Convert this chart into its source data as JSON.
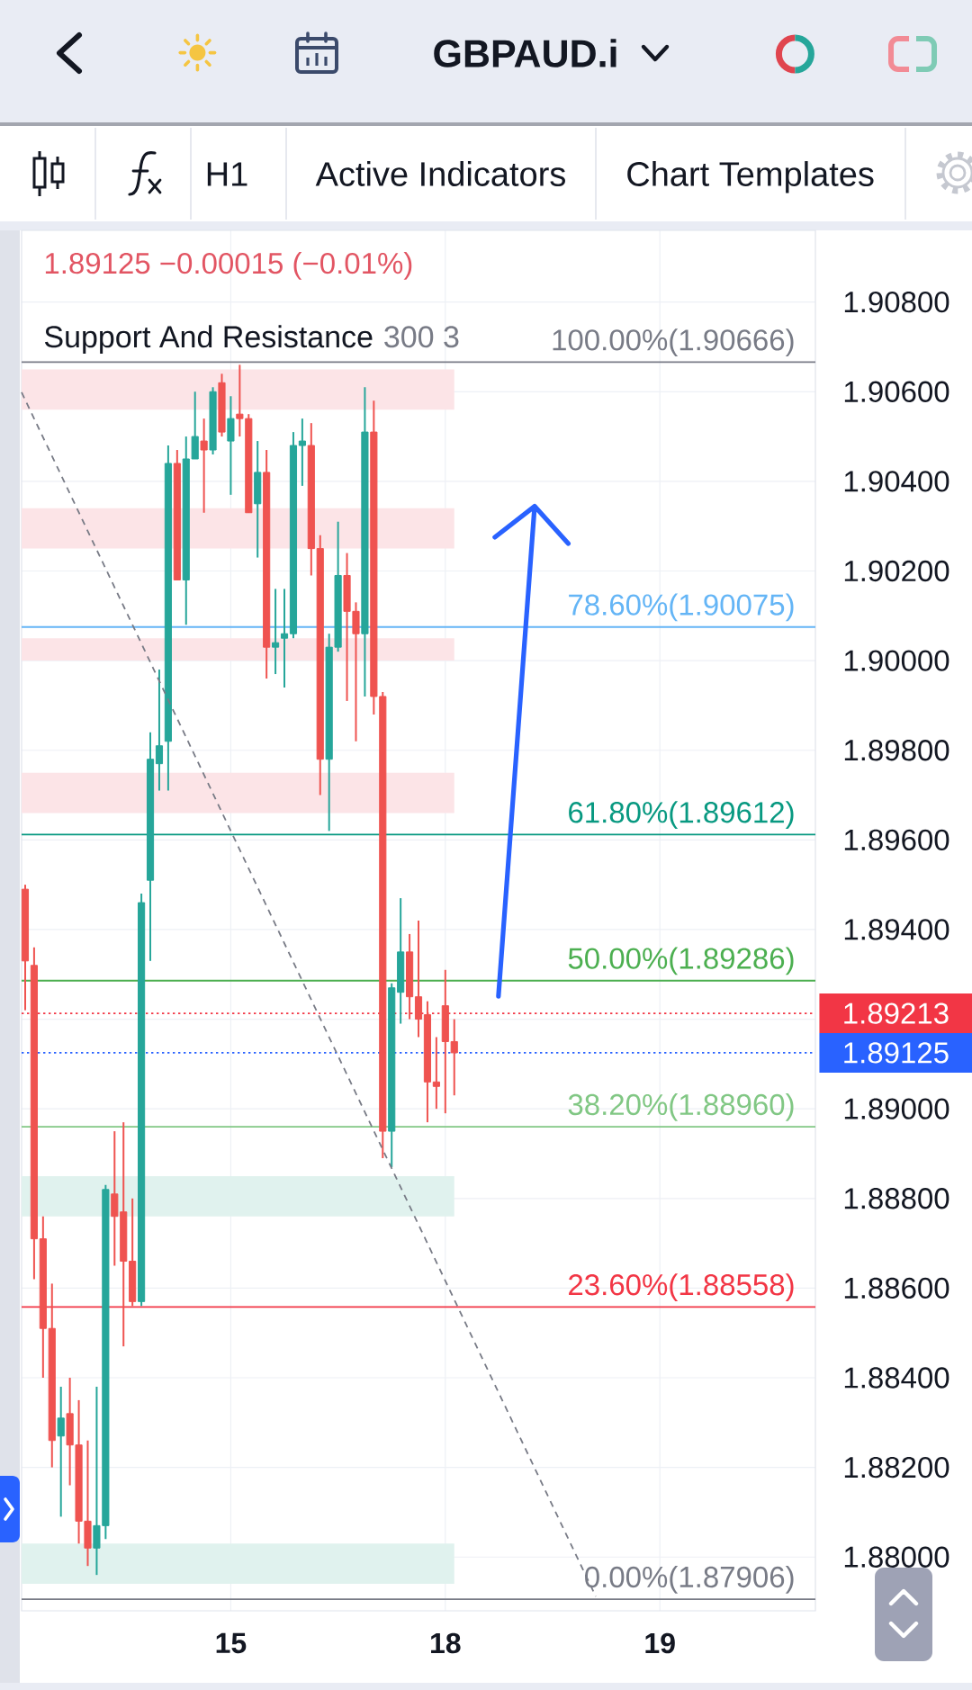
{
  "chart_data": {
    "type": "candlestick",
    "title": "GBPAUD.i",
    "annotations": [
      "1.89125 −0.00015 (−0.01%)",
      "Support And Resistance",
      "300 3",
      "H1",
      "Active Indicators",
      "Chart Templates"
    ],
    "categories": [
      null,
      null,
      null,
      null,
      null,
      null,
      null,
      null,
      null,
      null,
      null,
      null,
      null,
      null,
      null,
      null,
      null,
      null,
      null,
      null,
      null,
      null,
      null,
      "15",
      null,
      null,
      null,
      null,
      null,
      null,
      null,
      null,
      null,
      null,
      null,
      null,
      null,
      null,
      null,
      null,
      null,
      null,
      null,
      null,
      null,
      null,
      null,
      "18",
      null,
      null,
      null,
      null,
      null,
      null,
      null,
      null,
      null,
      null,
      null,
      null,
      null,
      null,
      null,
      null,
      null,
      null,
      null,
      null,
      null,
      null,
      null,
      "19",
      null,
      null,
      null,
      null,
      null,
      null,
      null,
      null,
      null,
      null,
      null,
      null,
      null,
      null,
      null,
      null,
      null
    ],
    "ohlc": [
      [
        1.8949,
        1.895,
        1.8922,
        1.8933
      ],
      [
        1.8932,
        1.8936,
        1.8862,
        1.8871
      ],
      [
        1.8871,
        1.8876,
        1.884,
        1.8851
      ],
      [
        1.8851,
        1.8861,
        1.882,
        1.8826
      ],
      [
        1.8827,
        1.8838,
        1.8809,
        1.8831
      ],
      [
        1.8832,
        1.884,
        1.8816,
        1.8825
      ],
      [
        1.8825,
        1.8835,
        1.8803,
        1.8808
      ],
      [
        1.8808,
        1.8826,
        1.8798,
        1.8802
      ],
      [
        1.8802,
        1.8838,
        1.8796,
        1.8807
      ],
      [
        1.8807,
        1.8883,
        1.8804,
        1.8882
      ],
      [
        1.8881,
        1.8895,
        1.8865,
        1.8876
      ],
      [
        1.8877,
        1.8897,
        1.8847,
        1.8866
      ],
      [
        1.8866,
        1.888,
        1.8856,
        1.8857
      ],
      [
        1.8857,
        1.8948,
        1.8856,
        1.8946
      ],
      [
        1.8951,
        1.8984,
        1.8933,
        1.8978
      ],
      [
        1.8977,
        1.8998,
        1.8971,
        1.8981
      ],
      [
        1.8982,
        1.9048,
        1.8971,
        1.9044
      ],
      [
        1.9044,
        1.9047,
        1.9018,
        1.9018
      ],
      [
        1.9018,
        1.905,
        1.9008,
        1.9045
      ],
      [
        1.9045,
        1.906,
        1.9045,
        1.905
      ],
      [
        1.9049,
        1.9054,
        1.9033,
        1.9047
      ],
      [
        1.9047,
        1.9061,
        1.9046,
        1.906
      ],
      [
        1.9062,
        1.9064,
        1.905,
        1.9051
      ],
      [
        1.9049,
        1.9059,
        1.9037,
        1.9054
      ],
      [
        1.9055,
        1.9066,
        1.905,
        1.9054
      ],
      [
        1.9054,
        1.9055,
        1.9033,
        1.9033
      ],
      [
        1.9035,
        1.9049,
        1.9023,
        1.9042
      ],
      [
        1.9042,
        1.9047,
        1.8996,
        1.9003
      ],
      [
        1.9003,
        1.9016,
        1.8997,
        1.9004
      ],
      [
        1.9005,
        1.9016,
        1.8994,
        1.9006
      ],
      [
        1.9006,
        1.9051,
        1.9005,
        1.9048
      ],
      [
        1.9048,
        1.9054,
        1.9039,
        1.9049
      ],
      [
        1.9048,
        1.9053,
        1.9019,
        1.9025
      ],
      [
        1.9025,
        1.9028,
        1.897,
        1.8978
      ],
      [
        1.8978,
        1.9006,
        1.8962,
        1.9003
      ],
      [
        1.9003,
        1.9031,
        1.9002,
        1.9019
      ],
      [
        1.9019,
        1.9024,
        1.8991,
        1.9011
      ],
      [
        1.9011,
        1.9013,
        1.8982,
        1.9006
      ],
      [
        1.9006,
        1.9061,
        1.8992,
        1.9051
      ],
      [
        1.9051,
        1.9058,
        1.8988,
        1.8992
      ],
      [
        1.8992,
        1.8993,
        1.8889,
        1.8895
      ],
      [
        1.8895,
        1.8928,
        1.8887,
        1.8927
      ],
      [
        1.8926,
        1.8947,
        1.8919,
        1.8935
      ],
      [
        1.8935,
        1.8939,
        1.892,
        1.8925
      ],
      [
        1.8925,
        1.8942,
        1.8916,
        1.892
      ],
      [
        1.8921,
        1.8924,
        1.8897,
        1.8906
      ],
      [
        1.8906,
        1.8916,
        1.89,
        1.8905
      ],
      [
        1.8923,
        1.8931,
        1.8899,
        1.8915
      ],
      [
        1.8915,
        1.892,
        1.8903,
        1.89125
      ],
      null,
      null,
      null,
      null,
      null,
      null,
      null,
      null,
      null,
      null,
      null,
      null,
      null,
      null,
      null,
      null,
      null,
      null,
      null,
      null,
      null,
      null,
      null,
      null,
      null,
      null,
      null,
      null,
      null,
      null,
      null,
      null,
      null,
      null,
      null,
      null,
      null,
      null,
      null,
      null
    ],
    "colors": [
      "#ef5350",
      "#ef5350",
      "#ef5350",
      "#ef5350",
      "#26a69a",
      "#ef5350",
      "#ef5350",
      "#ef5350",
      "#26a69a",
      "#26a69a",
      "#ef5350",
      "#ef5350",
      "#ef5350",
      "#26a69a",
      "#26a69a",
      "#26a69a",
      "#26a69a",
      "#ef5350",
      "#26a69a",
      "#26a69a",
      "#ef5350",
      "#26a69a",
      "#ef5350",
      "#26a69a",
      "#ef5350",
      "#ef5350",
      "#26a69a",
      "#ef5350",
      "#26a69a",
      "#26a69a",
      "#26a69a",
      "#26a69a",
      "#ef5350",
      "#ef5350",
      "#26a69a",
      "#26a69a",
      "#ef5350",
      "#ef5350",
      "#26a69a",
      "#ef5350",
      "#ef5350",
      "#26a69a",
      "#26a69a",
      "#ef5350",
      "#ef5350",
      "#ef5350",
      "#ef5350",
      "#ef5350",
      "#ef5350",
      null,
      null,
      null,
      null,
      null,
      null,
      null,
      null,
      null,
      null,
      null,
      null,
      null,
      null,
      null,
      null,
      null,
      null,
      null,
      null,
      null,
      null,
      null,
      null,
      null,
      null,
      null,
      null,
      null,
      null,
      null,
      null,
      null,
      null,
      null,
      null,
      null,
      null,
      null,
      null
    ],
    "ref_lines": [
      {
        "axis": "y",
        "value": 1.90666,
        "label": "100.00%(1.90666)",
        "color": "#787b86"
      },
      {
        "axis": "y",
        "value": 1.90075,
        "label": "78.60%(1.90075)",
        "color": "#64b5f6"
      },
      {
        "axis": "y",
        "value": 1.89612,
        "label": "61.80%(1.89612)",
        "color": "#089981"
      },
      {
        "axis": "y",
        "value": 1.89286,
        "label": "50.00%(1.89286)",
        "color": "#4caf50"
      },
      {
        "axis": "y",
        "value": 1.8896,
        "label": "38.20%(1.88960)",
        "color": "#81c784"
      },
      {
        "axis": "y",
        "value": 1.88558,
        "label": "23.60%(1.88558)",
        "color": "#f23645"
      },
      {
        "axis": "y",
        "value": 1.87906,
        "label": "0.00%(1.87906)",
        "color": "#787b86"
      },
      {
        "axis": "y",
        "value": 1.89213,
        "label": "1.89213",
        "color": "#f23645",
        "line_style": "dotted"
      },
      {
        "axis": "y",
        "value": 1.89125,
        "label": "1.89125",
        "color": "#2962ff",
        "line_style": "dotted"
      }
    ],
    "bands": [
      {
        "axis": "y",
        "from": 1.9056,
        "to": 1.9065,
        "color": "#fce4e7"
      },
      {
        "axis": "y",
        "from": 1.9025,
        "to": 1.9034,
        "color": "#fce4e7"
      },
      {
        "axis": "y",
        "from": 1.9,
        "to": 1.9005,
        "color": "#fce4e7"
      },
      {
        "axis": "y",
        "from": 1.8966,
        "to": 1.8975,
        "color": "#fce4e7"
      },
      {
        "axis": "y",
        "from": 1.8876,
        "to": 1.8885,
        "color": "#e0f2ee"
      },
      {
        "axis": "y",
        "from": 1.8794,
        "to": 1.8803,
        "color": "#e0f2ee"
      }
    ],
    "ylim": [
      1.8788,
      1.9096
    ],
    "yticks": [
      {
        "value": 1.88,
        "label": "1.88000"
      },
      {
        "value": 1.882,
        "label": "1.88200"
      },
      {
        "value": 1.884,
        "label": "1.88400"
      },
      {
        "value": 1.886,
        "label": "1.88600"
      },
      {
        "value": 1.888,
        "label": "1.88800"
      },
      {
        "value": 1.89,
        "label": "1.89000"
      },
      {
        "value": 1.892,
        "label": null
      },
      {
        "value": 1.894,
        "label": "1.89400"
      },
      {
        "value": 1.896,
        "label": "1.89600"
      },
      {
        "value": 1.898,
        "label": "1.89800"
      },
      {
        "value": 1.9,
        "label": "1.90000"
      },
      {
        "value": 1.902,
        "label": "1.90200"
      },
      {
        "value": 1.904,
        "label": "1.90400"
      },
      {
        "value": 1.906,
        "label": "1.90600"
      },
      {
        "value": 1.908,
        "label": "1.90800"
      }
    ],
    "grid": true
  }
}
